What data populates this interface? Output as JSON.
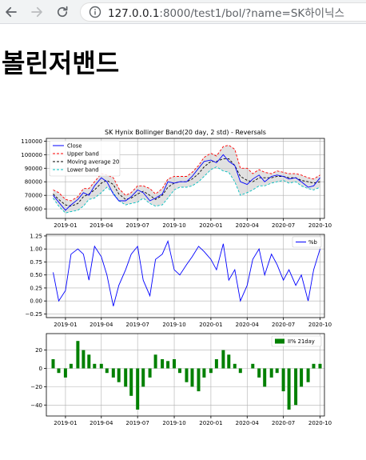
{
  "browser": {
    "back_icon": "arrow-left-icon",
    "forward_icon": "arrow-right-icon",
    "reload_icon": "reload-icon",
    "info_icon": "info-icon",
    "url_host": "127.0.0.1",
    "url_rest": ":8000/test1/bol/?name=SK하이닉스"
  },
  "page": {
    "title": "볼린저밴드"
  },
  "colors": {
    "close": "#0000ff",
    "upper": "#ff0000",
    "ma": "#000000",
    "lower": "#00bfbf",
    "fill": "#c8c8c8",
    "pb": "#0000ff",
    "ii": "#008000"
  },
  "chart_data": [
    {
      "type": "line",
      "title": "SK Hynix Bollinger Band(20 day, 2 std) - Reversals",
      "legend_position": "top-left",
      "grid": true,
      "xlim": [
        "2018-11-14",
        "2020-10-12"
      ],
      "ylim": [
        53000,
        112000
      ],
      "x_ticks": [
        "2019-01",
        "2019-04",
        "2019-07",
        "2019-10",
        "2020-01",
        "2020-04",
        "2020-07",
        "2020-10"
      ],
      "y_ticks": [
        60000,
        70000,
        80000,
        90000,
        100000,
        110000
      ],
      "x": [
        "2018-12-01",
        "2018-12-15",
        "2019-01-01",
        "2019-01-15",
        "2019-02-01",
        "2019-02-15",
        "2019-03-01",
        "2019-03-15",
        "2019-04-01",
        "2019-04-15",
        "2019-05-01",
        "2019-05-15",
        "2019-06-01",
        "2019-06-15",
        "2019-07-01",
        "2019-07-15",
        "2019-08-01",
        "2019-08-15",
        "2019-09-01",
        "2019-09-15",
        "2019-10-01",
        "2019-10-15",
        "2019-11-01",
        "2019-11-15",
        "2019-12-01",
        "2019-12-15",
        "2020-01-01",
        "2020-01-15",
        "2020-02-01",
        "2020-02-15",
        "2020-03-01",
        "2020-03-15",
        "2020-04-01",
        "2020-04-15",
        "2020-05-01",
        "2020-05-15",
        "2020-06-01",
        "2020-06-15",
        "2020-07-01",
        "2020-07-15",
        "2020-08-01",
        "2020-08-15",
        "2020-09-01",
        "2020-09-15",
        "2020-10-01"
      ],
      "series": [
        {
          "name": "Close",
          "style": "solid",
          "values": [
            70000,
            65000,
            59000,
            63000,
            67000,
            72000,
            70000,
            77000,
            83000,
            80000,
            71000,
            66000,
            66000,
            69000,
            74000,
            72000,
            66000,
            68000,
            71000,
            80000,
            79000,
            80000,
            80000,
            84000,
            90000,
            95000,
            96000,
            94000,
            100000,
            95000,
            92000,
            80000,
            78000,
            82000,
            85000,
            80000,
            84000,
            85000,
            84000,
            82000,
            83000,
            80000,
            76000,
            77000,
            83000
          ]
        },
        {
          "name": "Upper band",
          "style": "dashed",
          "values": [
            74000,
            72000,
            67000,
            66000,
            69000,
            75000,
            75000,
            80000,
            86000,
            85000,
            83000,
            75000,
            70000,
            72000,
            77000,
            77000,
            75000,
            71000,
            75000,
            82000,
            84000,
            84000,
            84000,
            87000,
            92000,
            98000,
            101000,
            99000,
            106000,
            107000,
            104000,
            90000,
            90000,
            86000,
            89000,
            87000,
            86000,
            88000,
            87000,
            86000,
            86000,
            85000,
            83000,
            82000,
            85000
          ]
        },
        {
          "name": "Moving average 20",
          "style": "dashed",
          "values": [
            71000,
            67000,
            63000,
            62000,
            64000,
            69000,
            71000,
            74000,
            79000,
            81000,
            78000,
            71000,
            67000,
            68000,
            71000,
            73000,
            70000,
            67000,
            70000,
            76000,
            79000,
            80000,
            80000,
            82000,
            86000,
            91000,
            95000,
            95000,
            97000,
            97000,
            92000,
            84000,
            81000,
            80000,
            83000,
            83000,
            83000,
            84000,
            84000,
            83000,
            83000,
            81000,
            80000,
            79000,
            80000
          ]
        },
        {
          "name": "Lower band",
          "style": "dashed",
          "values": [
            68000,
            62000,
            57000,
            58000,
            59000,
            62000,
            67000,
            68000,
            72000,
            76000,
            72000,
            66000,
            63000,
            64000,
            65000,
            68000,
            64000,
            62000,
            63000,
            68000,
            74000,
            76000,
            76000,
            77000,
            80000,
            84000,
            89000,
            91000,
            88000,
            87000,
            80000,
            70000,
            72000,
            74000,
            77000,
            77000,
            79000,
            80000,
            81000,
            79000,
            80000,
            77000,
            75000,
            74000,
            76000
          ]
        }
      ]
    },
    {
      "type": "line",
      "legend_position": "top-right",
      "grid": true,
      "xlim": [
        "2018-11-14",
        "2020-10-12"
      ],
      "ylim": [
        -0.32,
        1.28
      ],
      "x_ticks": [
        "2019-01",
        "2019-04",
        "2019-07",
        "2019-10",
        "2020-01",
        "2020-04",
        "2020-07",
        "2020-10"
      ],
      "y_ticks": [
        -0.25,
        0.0,
        0.25,
        0.5,
        0.75,
        1.0,
        1.25
      ],
      "y_tick_labels": [
        "−0.25",
        "0.00",
        "0.25",
        "0.50",
        "0.75",
        "1.00",
        "1.25"
      ],
      "series": [
        {
          "name": "%b",
          "x": [
            "2018-12-01",
            "2018-12-15",
            "2019-01-01",
            "2019-01-15",
            "2019-02-01",
            "2019-02-15",
            "2019-03-01",
            "2019-03-15",
            "2019-04-01",
            "2019-04-15",
            "2019-05-01",
            "2019-05-15",
            "2019-06-01",
            "2019-06-15",
            "2019-07-01",
            "2019-07-15",
            "2019-08-01",
            "2019-08-15",
            "2019-09-01",
            "2019-09-15",
            "2019-10-01",
            "2019-10-15",
            "2019-11-01",
            "2019-11-15",
            "2019-12-01",
            "2019-12-15",
            "2020-01-01",
            "2020-01-15",
            "2020-02-01",
            "2020-02-15",
            "2020-03-01",
            "2020-03-15",
            "2020-04-01",
            "2020-04-15",
            "2020-05-01",
            "2020-05-15",
            "2020-06-01",
            "2020-06-15",
            "2020-07-01",
            "2020-07-15",
            "2020-08-01",
            "2020-08-15",
            "2020-09-01",
            "2020-09-15",
            "2020-10-01"
          ],
          "values": [
            0.55,
            0.0,
            0.2,
            0.9,
            1.0,
            0.9,
            0.4,
            1.05,
            0.85,
            0.5,
            -0.1,
            0.3,
            0.6,
            0.9,
            1.05,
            0.4,
            0.1,
            0.8,
            0.9,
            1.15,
            0.6,
            0.5,
            0.7,
            0.85,
            1.05,
            0.95,
            0.8,
            0.6,
            1.1,
            0.4,
            0.6,
            0.0,
            0.3,
            0.8,
            1.0,
            0.5,
            0.9,
            0.7,
            0.4,
            0.6,
            0.3,
            0.5,
            0.0,
            0.6,
            1.0
          ]
        }
      ]
    },
    {
      "type": "bar",
      "legend_position": "top-right",
      "grid": true,
      "xlim": [
        "2018-11-14",
        "2020-10-12"
      ],
      "ylim": [
        -52,
        38
      ],
      "x_ticks": [
        "2019-01",
        "2019-04",
        "2019-07",
        "2019-10",
        "2020-01",
        "2020-04",
        "2020-07",
        "2020-10"
      ],
      "y_ticks": [
        -40,
        -20,
        0,
        20
      ],
      "y_tick_labels": [
        "−40",
        "−20",
        "0",
        "20"
      ],
      "series": [
        {
          "name": "II% 21day",
          "x": [
            "2018-12-01",
            "2018-12-15",
            "2019-01-01",
            "2019-01-15",
            "2019-02-01",
            "2019-02-15",
            "2019-03-01",
            "2019-03-15",
            "2019-04-01",
            "2019-04-15",
            "2019-05-01",
            "2019-05-15",
            "2019-06-01",
            "2019-06-15",
            "2019-07-01",
            "2019-07-15",
            "2019-08-01",
            "2019-08-15",
            "2019-09-01",
            "2019-09-15",
            "2019-10-01",
            "2019-10-15",
            "2019-11-01",
            "2019-11-15",
            "2019-12-01",
            "2019-12-15",
            "2020-01-01",
            "2020-01-15",
            "2020-02-01",
            "2020-02-15",
            "2020-03-01",
            "2020-03-15",
            "2020-04-01",
            "2020-04-15",
            "2020-05-01",
            "2020-05-15",
            "2020-06-01",
            "2020-06-15",
            "2020-07-01",
            "2020-07-15",
            "2020-08-01",
            "2020-08-15",
            "2020-09-01",
            "2020-09-15",
            "2020-10-01"
          ],
          "values": [
            10,
            -5,
            -10,
            5,
            30,
            20,
            15,
            5,
            5,
            -5,
            -10,
            -15,
            -20,
            -30,
            -45,
            -20,
            -10,
            15,
            10,
            8,
            10,
            -5,
            -15,
            -20,
            -25,
            -10,
            -5,
            10,
            20,
            15,
            5,
            -5,
            0,
            5,
            -10,
            -20,
            -10,
            -5,
            -25,
            -45,
            -40,
            -20,
            -15,
            5,
            5
          ]
        }
      ]
    }
  ]
}
